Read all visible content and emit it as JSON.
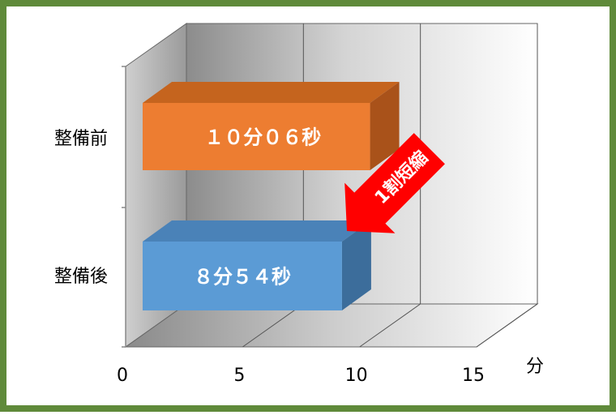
{
  "chart_data": {
    "type": "bar",
    "orientation": "horizontal",
    "style": "3d",
    "categories": [
      "整備前",
      "整備後"
    ],
    "values": [
      10.1,
      8.9
    ],
    "data_labels": [
      "１０分０６秒",
      "８分５４秒"
    ],
    "bar_colors": [
      "#ED7D31",
      "#5B9BD5"
    ],
    "xlim": [
      0,
      15
    ],
    "xticks": [
      "0",
      "5",
      "10",
      "15"
    ],
    "xlabel": "分",
    "grid": true,
    "annotation": {
      "text": "1割短縮",
      "color": "#FF0000",
      "text_color": "#ffffff"
    }
  },
  "colors": {
    "border": "#5F8A3A",
    "bar_top_orange": "#C5641E",
    "bar_side_orange": "#A9521A",
    "bar_top_blue": "#4A82B8",
    "bar_side_blue": "#3C6D9B"
  }
}
